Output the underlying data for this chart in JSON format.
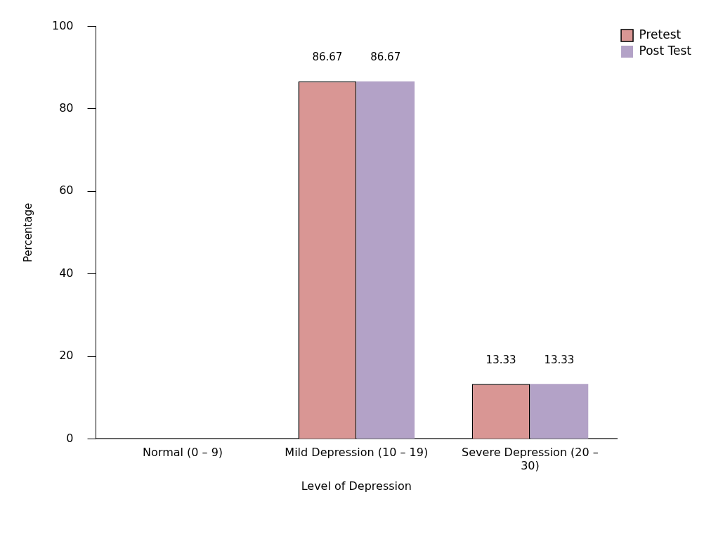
{
  "chart_data": {
    "type": "bar",
    "xlabel": "Level of Depression",
    "ylabel": "Percentage",
    "categories": [
      "Normal (0 – 9)",
      "Mild Depression (10 – 19)",
      "Severe Depression (20 – 30)"
    ],
    "series": [
      {
        "name": "Pretest",
        "color": "#d99694",
        "values": [
          0,
          86.67,
          13.33
        ],
        "value_labels": [
          null,
          "86.67",
          "13.33"
        ]
      },
      {
        "name": "Post Test",
        "color": "#b3a2c7",
        "values": [
          0,
          86.67,
          13.33
        ],
        "value_labels": [
          null,
          "86.67",
          "13.33"
        ]
      }
    ],
    "ylim": [
      0,
      100
    ],
    "yticks": [
      0,
      20,
      40,
      60,
      80,
      100
    ],
    "grid": false,
    "legend": "top right"
  }
}
